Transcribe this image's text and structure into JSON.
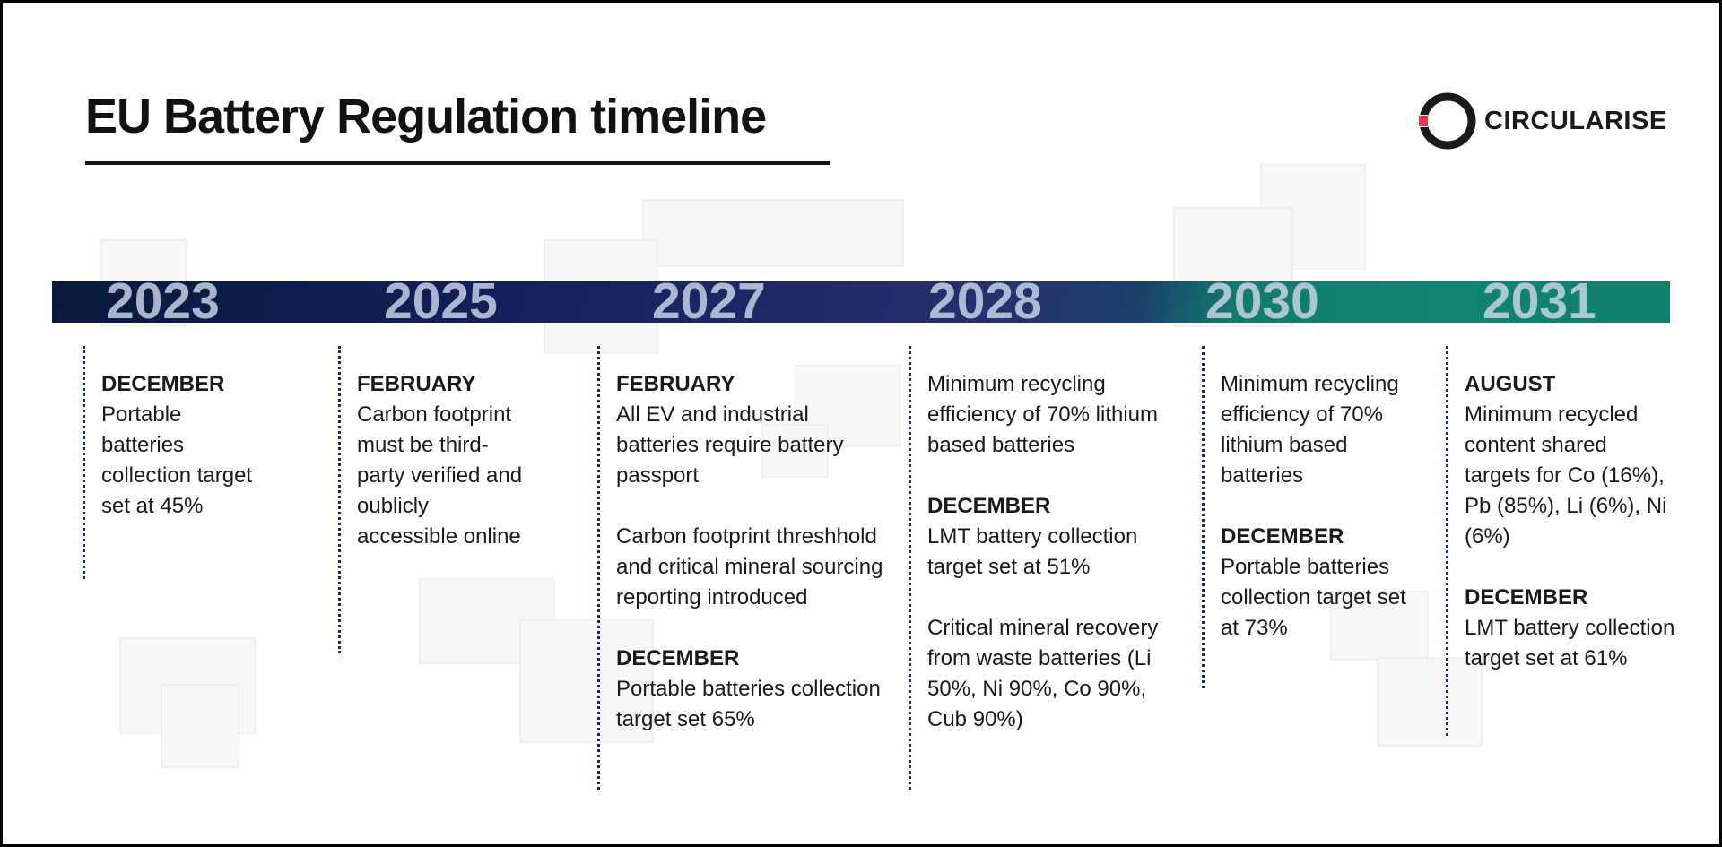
{
  "title": "EU Battery Regulation timeline",
  "logo": {
    "text": "CIRCULARISE",
    "icon": "circularise-ring-logo-icon"
  },
  "colors": {
    "band_start": "#081a3c",
    "band_mid": "#26306e",
    "band_end": "#0f7f6b",
    "logo_accent": "#e8384b",
    "dotted_line": "#1b2a55"
  },
  "columns": [
    {
      "year": "2023",
      "entries": [
        {
          "month": "DECEMBER",
          "text": "Portable batteries collection target set at 45%"
        }
      ]
    },
    {
      "year": "2025",
      "entries": [
        {
          "month": "FEBRUARY",
          "text": "Carbon footprint must be third-party verified and oublicly accessible online"
        }
      ]
    },
    {
      "year": "2027",
      "entries": [
        {
          "month": "FEBRUARY",
          "text": "All EV and industrial batteries require battery passport"
        },
        {
          "month": "",
          "text": "Carbon footprint threshhold and critical mineral sourcing reporting introduced"
        },
        {
          "month": "DECEMBER",
          "text": "Portable batteries collection target set 65%"
        }
      ]
    },
    {
      "year": "2028",
      "entries": [
        {
          "month": "",
          "text": "Minimum recycling efficiency of 70% lithium based batteries"
        },
        {
          "month": "DECEMBER",
          "text": "LMT battery collection target set at 51%"
        },
        {
          "month": "",
          "text": "Critical mineral recovery from waste batteries (Li 50%, Ni 90%, Co 90%, Cub 90%)"
        }
      ]
    },
    {
      "year": "2030",
      "entries": [
        {
          "month": "",
          "text": "Minimum recycling efficiency of 70% lithium based batteries"
        },
        {
          "month": "DECEMBER",
          "text": "Portable batteries collection target set at 73%"
        }
      ]
    },
    {
      "year": "2031",
      "entries": [
        {
          "month": "AUGUST",
          "text": "Minimum recycled content shared targets for Co (16%), Pb (85%), Li (6%), Ni (6%)"
        },
        {
          "month": "DECEMBER",
          "text": "LMT battery collection target set at 61%"
        }
      ]
    }
  ]
}
